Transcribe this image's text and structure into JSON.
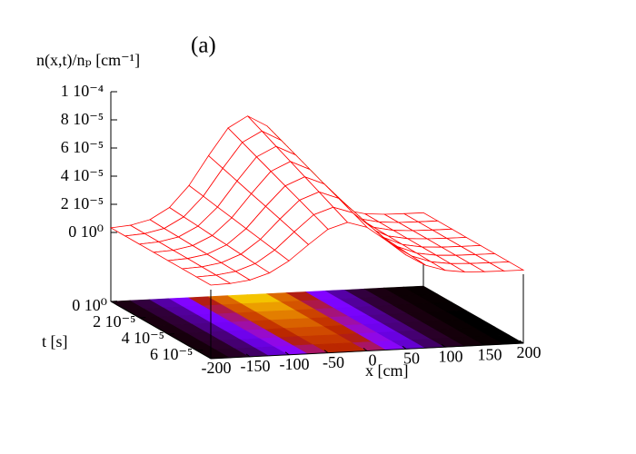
{
  "chart_data": {
    "type": "surface",
    "annotation": "(a)",
    "zlabel": "n(x,t)/nₚ [cm⁻¹]",
    "ylabel": "t [s]",
    "xlabel": "x [cm]",
    "line_color": "#ff0000",
    "underside_color": "#00dd00",
    "x": [
      -200,
      -175,
      -150,
      -125,
      -100,
      -75,
      -50,
      -25,
      0,
      25,
      50,
      75,
      100,
      125,
      150,
      175,
      200
    ],
    "t": [
      0,
      1e-05,
      2e-05,
      3e-05,
      4e-05,
      5e-05,
      6e-05,
      7e-05
    ],
    "z": [
      [
        3.3e-06,
        4.4e-06,
        7.7e-06,
        1.57e-05,
        3.06e-05,
        5.11e-05,
        7.01e-05,
        7.8e-05,
        7.01e-05,
        5.11e-05,
        3.06e-05,
        1.57e-05,
        7.7e-06,
        4.4e-06,
        3.3e-06,
        3.1e-06,
        3e-06
      ],
      [
        3.3e-06,
        4.3e-06,
        7.3e-06,
        1.48e-05,
        2.88e-05,
        4.79e-05,
        6.57e-05,
        7.3e-05,
        6.57e-05,
        4.79e-05,
        2.88e-05,
        1.48e-05,
        7.3e-06,
        4.3e-06,
        3.3e-06,
        3.1e-06,
        3e-06
      ],
      [
        3.3e-06,
        4.2e-06,
        7e-06,
        1.4e-05,
        2.69e-05,
        4.47e-05,
        6.12e-05,
        6.8e-05,
        6.12e-05,
        4.47e-05,
        2.69e-05,
        1.4e-05,
        7e-06,
        4.2e-06,
        3.3e-06,
        3.1e-06,
        3e-06
      ],
      [
        3.3e-06,
        4.1e-06,
        6.7e-06,
        1.31e-05,
        2.51e-05,
        4.15e-05,
        5.67e-05,
        6.3e-05,
        5.67e-05,
        4.15e-05,
        2.51e-05,
        1.31e-05,
        6.7e-06,
        4.1e-06,
        3.3e-06,
        3e-06,
        3e-06
      ],
      [
        3.2e-06,
        4e-06,
        6.4e-06,
        1.23e-05,
        2.32e-05,
        3.83e-05,
        5.22e-05,
        5.8e-05,
        5.22e-05,
        3.83e-05,
        2.32e-05,
        1.23e-05,
        6.4e-06,
        4e-06,
        3.2e-06,
        3e-06,
        3e-06
      ],
      [
        3.2e-06,
        3.9e-06,
        6.1e-06,
        1.15e-05,
        2.14e-05,
        3.51e-05,
        4.78e-05,
        5.3e-05,
        4.78e-05,
        3.51e-05,
        2.14e-05,
        1.15e-05,
        6.1e-06,
        3.9e-06,
        3.2e-06,
        3e-06,
        3e-06
      ],
      [
        3.2e-06,
        3.8e-06,
        5.8e-06,
        1.06e-05,
        1.96e-05,
        3.18e-05,
        4.33e-05,
        4.8e-05,
        4.33e-05,
        3.18e-05,
        1.96e-05,
        1.06e-05,
        5.8e-06,
        3.8e-06,
        3.2e-06,
        3e-06,
        3e-06
      ],
      [
        3.2e-06,
        3.7e-06,
        5.5e-06,
        9.8e-06,
        1.77e-05,
        2.86e-05,
        3.88e-05,
        4.3e-05,
        3.88e-05,
        2.86e-05,
        1.77e-05,
        9.8e-06,
        5.5e-06,
        3.7e-06,
        3.2e-06,
        3e-06,
        3e-06
      ]
    ],
    "xlim": [
      -200,
      200
    ],
    "xticks": [
      -200,
      -150,
      -100,
      -50,
      0,
      50,
      100,
      150,
      200
    ],
    "ylim": [
      0,
      7e-05
    ],
    "yticks": [
      {
        "value": 0,
        "label": "0 10⁰"
      },
      {
        "value": 2e-05,
        "label": "2 10⁻⁵"
      },
      {
        "value": 4e-05,
        "label": "4 10⁻⁵"
      },
      {
        "value": 6e-05,
        "label": "6 10⁻⁵"
      }
    ],
    "zlim": [
      0,
      0.0001
    ],
    "zticks": [
      {
        "value": 0,
        "label": "0 10⁰"
      },
      {
        "value": 2e-05,
        "label": "2 10⁻⁵"
      },
      {
        "value": 4e-05,
        "label": "4 10⁻⁵"
      },
      {
        "value": 6e-05,
        "label": "6 10⁻⁵"
      },
      {
        "value": 8e-05,
        "label": "8 10⁻⁵"
      },
      {
        "value": 0.0001,
        "label": "1 10⁻⁴"
      }
    ]
  }
}
